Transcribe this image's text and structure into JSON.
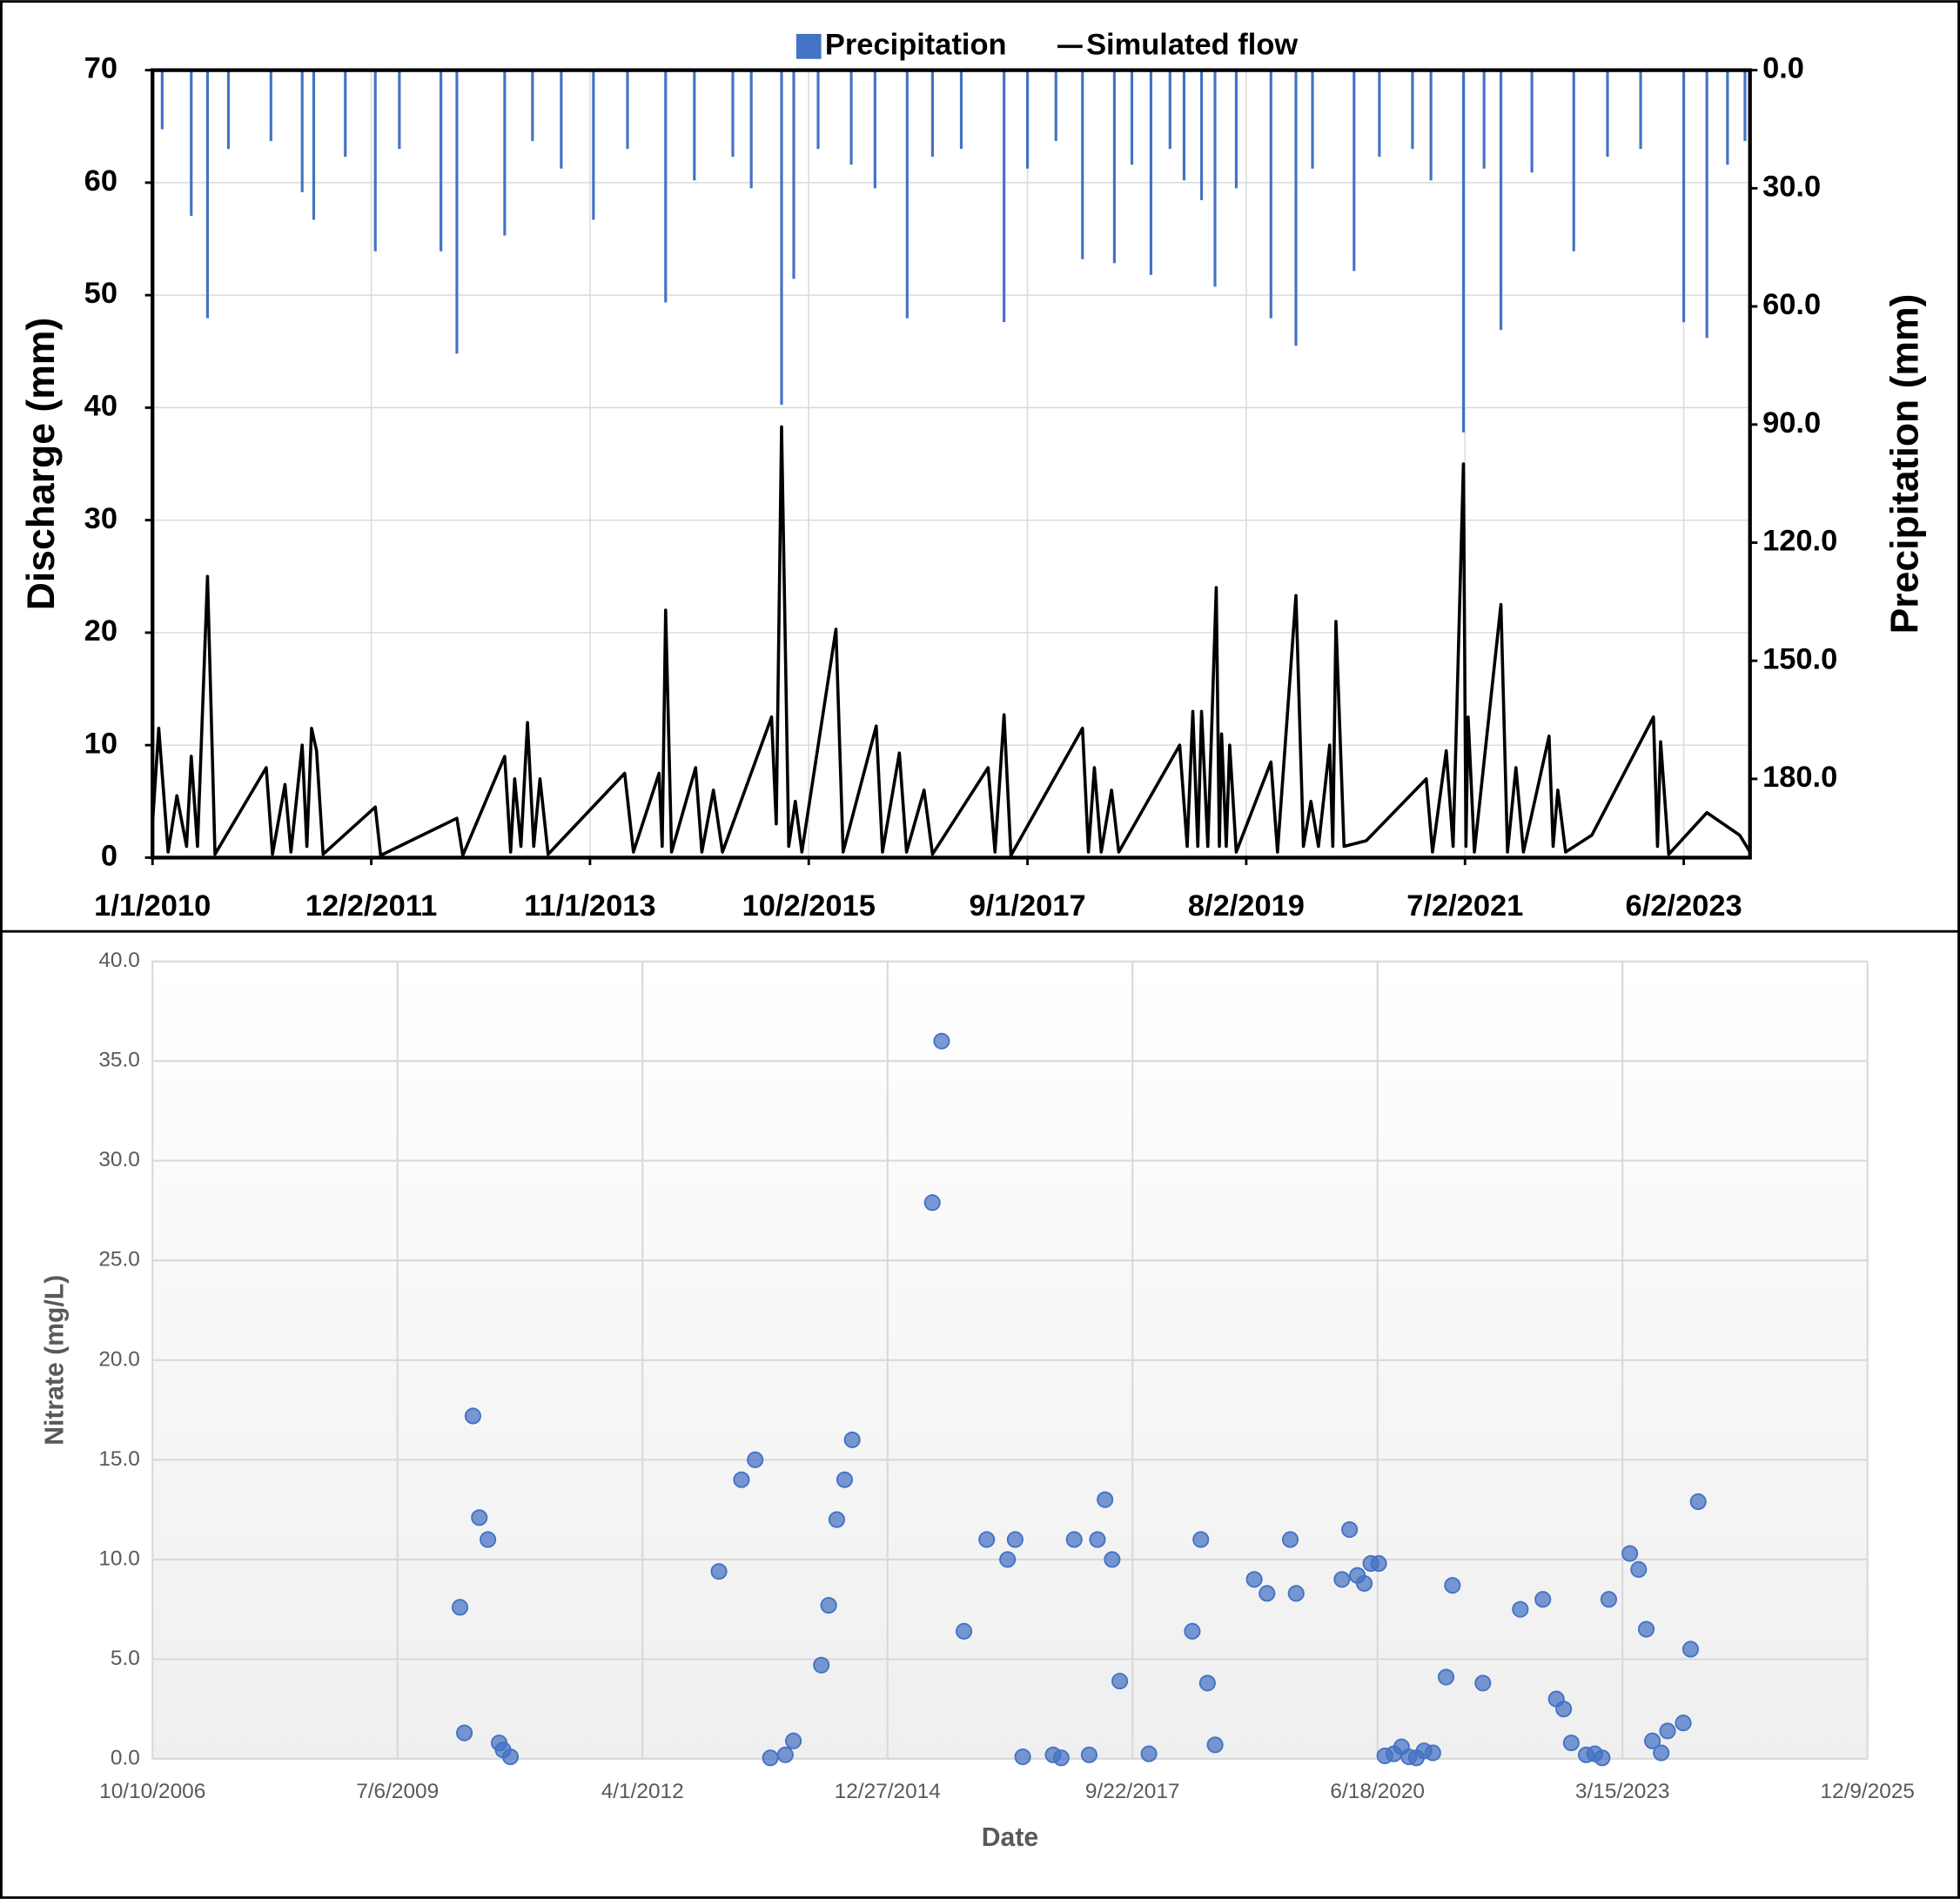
{
  "chart_data": [
    {
      "type": "combo",
      "y_title": "Discharge (mm)",
      "y2_title": "Precipitation (mm)",
      "legend": "top",
      "grid": true,
      "xlim": [
        "1/1/2010",
        "12/31/2023"
      ],
      "xticks": [
        "1/1/2010",
        "12/2/2011",
        "11/1/2013",
        "10/2/2015",
        "9/1/2017",
        "8/2/2019",
        "7/2/2021",
        "6/2/2023"
      ],
      "ylim": [
        0,
        70
      ],
      "yticks": [
        0,
        10,
        20,
        30,
        40,
        50,
        60,
        70
      ],
      "y2lim": [
        200,
        0
      ],
      "y2ticks": [
        {
          "value": 0,
          "label": "0.0"
        },
        {
          "value": 30,
          "label": "30.0"
        },
        {
          "value": 60,
          "label": "60.0"
        },
        {
          "value": 90,
          "label": "90.0"
        },
        {
          "value": 120,
          "label": "120.0"
        },
        {
          "value": 150,
          "label": "150.0"
        },
        {
          "value": 180,
          "label": "180.0"
        }
      ],
      "series": [
        {
          "name": "Precipitation",
          "type": "bar",
          "axis": "y2",
          "color": "#4472c4",
          "x": [
            "2/1/2010",
            "5/5/2010",
            "6/26/2010",
            "9/1/2010",
            "1/15/2011",
            "4/25/2011",
            "6/1/2011",
            "9/10/2011",
            "12/15/2011",
            "3/1/2012",
            "7/12/2012",
            "9/1/2012",
            "2/1/2013",
            "5/1/2013",
            "8/1/2013",
            "11/12/2013",
            "3/1/2014",
            "7/1/2014",
            "10/1/2014",
            "2/1/2015",
            "4/1/2015",
            "7/7/2015",
            "8/15/2015",
            "11/1/2015",
            "2/15/2016",
            "5/1/2016",
            "8/12/2016",
            "11/1/2016",
            "2/1/2017",
            "6/18/2017",
            "9/1/2017",
            "12/1/2017",
            "2/24/2018",
            "6/6/2018",
            "8/1/2018",
            "10/1/2018",
            "12/1/2018",
            "1/15/2019",
            "3/12/2019",
            "4/24/2019",
            "7/1/2019",
            "10/20/2019",
            "1/8/2020",
            "3/1/2020",
            "7/12/2020",
            "10/1/2020",
            "1/15/2021",
            "3/15/2021",
            "6/27/2021",
            "9/1/2021",
            "10/25/2021",
            "2/1/2022",
            "6/15/2022",
            "10/1/2022",
            "1/15/2023",
            "6/2/2023",
            "8/15/2023",
            "10/20/2023",
            "12/15/2023"
          ],
          "values": [
            15,
            37,
            63,
            20,
            18,
            31,
            38,
            22,
            46,
            20,
            46,
            72,
            42,
            18,
            25,
            38,
            20,
            59,
            28,
            22,
            30,
            85,
            53,
            20,
            24,
            30,
            63,
            22,
            20,
            64,
            25,
            18,
            48,
            49,
            24,
            52,
            20,
            28,
            33,
            55,
            30,
            63,
            70,
            25,
            51,
            22,
            20,
            28,
            92,
            25,
            66,
            26,
            46,
            22,
            20,
            64,
            68,
            24,
            18
          ]
        },
        {
          "name": "Simulated flow",
          "type": "line",
          "color": "#000000",
          "x": [
            "1/1/2010",
            "1/21/2010",
            "2/20/2010",
            "3/20/2010",
            "4/20/2010",
            "5/5/2010",
            "5/25/2010",
            "6/26/2010",
            "7/20/2010",
            "12/31/2010",
            "1/20/2011",
            "3/1/2011",
            "3/20/2011",
            "4/25/2011",
            "5/10/2011",
            "5/25/2011",
            "6/10/2011",
            "7/1/2011",
            "12/15/2011",
            "1/1/2012",
            "9/1/2012",
            "9/20/2012",
            "2/1/2013",
            "2/20/2013",
            "3/5/2013",
            "3/25/2013",
            "4/15/2013",
            "5/5/2013",
            "5/25/2013",
            "6/20/2013",
            "2/20/2014",
            "3/20/2014",
            "6/10/2014",
            "6/20/2014",
            "7/1/2014",
            "7/20/2014",
            "10/5/2014",
            "10/25/2014",
            "12/1/2014",
            "12/30/2014",
            "6/5/2015",
            "6/20/2015",
            "7/7/2015",
            "7/30/2015",
            "8/20/2015",
            "9/10/2015",
            "12/28/2015",
            "1/20/2016",
            "5/5/2016",
            "5/25/2016",
            "7/18/2016",
            "8/10/2016",
            "10/5/2016",
            "11/1/2016",
            "4/28/2017",
            "5/20/2017",
            "6/18/2017",
            "7/10/2017",
            "2/24/2018",
            "3/15/2018",
            "4/3/2018",
            "4/25/2018",
            "5/28/2018",
            "6/20/2018",
            "1/1/2019",
            "1/25/2019",
            "2/12/2019",
            "2/28/2019",
            "3/12/2019",
            "4/1/2019",
            "4/28/2019",
            "5/8/2019",
            "5/15/2019",
            "5/30/2019",
            "6/10/2019",
            "7/1/2019",
            "10/20/2019",
            "11/10/2019",
            "1/8/2020",
            "2/1/2020",
            "2/25/2020",
            "3/20/2020",
            "4/25/2020",
            "5/5/2020",
            "5/15/2020",
            "6/10/2020",
            "8/20/2020",
            "2/28/2021",
            "3/20/2021",
            "5/3/2021",
            "5/25/2021",
            "6/27/2021",
            "7/5/2021",
            "7/12/2021",
            "8/1/2021",
            "10/25/2021",
            "11/15/2021",
            "12/12/2021",
            "1/5/2022",
            "3/28/2022",
            "4/10/2022",
            "4/25/2022",
            "5/20/2022",
            "8/12/2022",
            "2/25/2023",
            "3/10/2023",
            "3/20/2023",
            "4/15/2023",
            "8/15/2023",
            "11/28/2023",
            "12/31/2023"
          ],
          "values": [
            3,
            11.5,
            0.5,
            5.5,
            1,
            9,
            1,
            25,
            0.3,
            8,
            0.3,
            6.5,
            0.5,
            10,
            1,
            11.5,
            9.5,
            0.3,
            4.5,
            0.2,
            3.5,
            0.2,
            9,
            0.5,
            7,
            1,
            12,
            1,
            7,
            0.3,
            7.5,
            0.5,
            7.5,
            1,
            22,
            0.5,
            8,
            0.5,
            6,
            0.5,
            12.5,
            3,
            38.3,
            1,
            5,
            0.5,
            20.3,
            0.5,
            11.7,
            0.5,
            9.3,
            0.5,
            6,
            0.3,
            8,
            0.5,
            12.7,
            0.2,
            11.5,
            0.5,
            8,
            0.5,
            6,
            0.5,
            10,
            1,
            13,
            1,
            13,
            1,
            24,
            1,
            11,
            1,
            10,
            0.5,
            8.5,
            0.5,
            23.3,
            1,
            5,
            1,
            10,
            1,
            21,
            1,
            1.5,
            7,
            0.5,
            9.5,
            1,
            35,
            1,
            12.5,
            0.5,
            22.5,
            0.5,
            8,
            0.5,
            10.8,
            1,
            6,
            0.5,
            2,
            12.5,
            1,
            10.3,
            0.3,
            4,
            2,
            0.5
          ]
        }
      ]
    },
    {
      "type": "scatter",
      "x_title": "Date",
      "y_title": "Nitrate (mg/L)",
      "grid": true,
      "color": "#4472c4",
      "xlim": [
        "10/10/2006",
        "12/9/2025"
      ],
      "xticks": [
        "10/10/2006",
        "7/6/2009",
        "4/1/2012",
        "12/27/2014",
        "9/22/2017",
        "6/18/2020",
        "3/15/2023",
        "12/9/2025"
      ],
      "ylim": [
        0,
        40
      ],
      "yticks": [
        {
          "value": 0,
          "label": "0.0"
        },
        {
          "value": 5,
          "label": "5.0"
        },
        {
          "value": 10,
          "label": "10.0"
        },
        {
          "value": 15,
          "label": "15.0"
        },
        {
          "value": 20,
          "label": "20.0"
        },
        {
          "value": 25,
          "label": "25.0"
        },
        {
          "value": 30,
          "label": "30.0"
        },
        {
          "value": 35,
          "label": "35.0"
        },
        {
          "value": 40,
          "label": "40.0"
        }
      ],
      "x": [
        "3/18/2010",
        "4/5/2010",
        "5/10/2010",
        "6/5/2010",
        "7/10/2010",
        "8/25/2010",
        "9/10/2010",
        "10/10/2010",
        "2/7/2013",
        "5/10/2013",
        "7/5/2013",
        "9/5/2013",
        "11/5/2013",
        "12/8/2013",
        "4/1/2014",
        "5/1/2014",
        "6/3/2014",
        "7/5/2014",
        "8/5/2014",
        "6/28/2015",
        "8/5/2015",
        "11/4/2015",
        "2/5/2016",
        "4/30/2016",
        "5/31/2016",
        "7/1/2016",
        "11/2/2016",
        "12/5/2016",
        "1/27/2017",
        "3/29/2017",
        "5/2/2017",
        "6/2/2017",
        "7/1/2017",
        "8/1/2017",
        "11/28/2017",
        "5/24/2018",
        "6/28/2018",
        "7/25/2018",
        "8/25/2018",
        "2/1/2019",
        "3/25/2019",
        "6/28/2019",
        "7/22/2019",
        "1/25/2020",
        "2/25/2020",
        "3/28/2020",
        "4/25/2020",
        "5/22/2020",
        "6/23/2020",
        "7/18/2020",
        "8/24/2020",
        "9/24/2020",
        "10/24/2020",
        "11/24/2020",
        "12/25/2020",
        "1/30/2021",
        "3/25/2021",
        "4/20/2021",
        "8/22/2021",
        "1/22/2022",
        "4/24/2022",
        "6/18/2022",
        "7/18/2022",
        "8/18/2022",
        "10/18/2022",
        "11/22/2022",
        "12/22/2022",
        "1/18/2023",
        "4/14/2023",
        "5/20/2023",
        "6/20/2023",
        "7/15/2023",
        "8/20/2023",
        "9/15/2023",
        "11/18/2023",
        "12/18/2023",
        "1/18/2024"
      ],
      "values": [
        7.6,
        1.3,
        17.2,
        12.1,
        11.0,
        0.8,
        0.45,
        0.1,
        9.4,
        14.0,
        15.0,
        0.05,
        0.2,
        0.9,
        4.7,
        7.7,
        12.0,
        14.0,
        16.0,
        27.9,
        36.0,
        6.4,
        11.0,
        10.0,
        11.0,
        0.1,
        0.2,
        0.05,
        11.0,
        0.2,
        11.0,
        13.0,
        10.0,
        3.9,
        0.25,
        6.4,
        11.0,
        3.8,
        0.7,
        9.0,
        8.3,
        11.0,
        8.3,
        9.0,
        11.5,
        9.2,
        8.8,
        9.8,
        9.8,
        0.15,
        0.25,
        0.6,
        0.1,
        0.05,
        0.4,
        0.3,
        4.1,
        8.7,
        3.8,
        7.5,
        8.0,
        3.0,
        2.5,
        0.8,
        0.2,
        0.25,
        0.05,
        8.0,
        10.3,
        9.5,
        6.5,
        0.9,
        0.3,
        1.4,
        1.8,
        5.5,
        12.9
      ]
    }
  ]
}
